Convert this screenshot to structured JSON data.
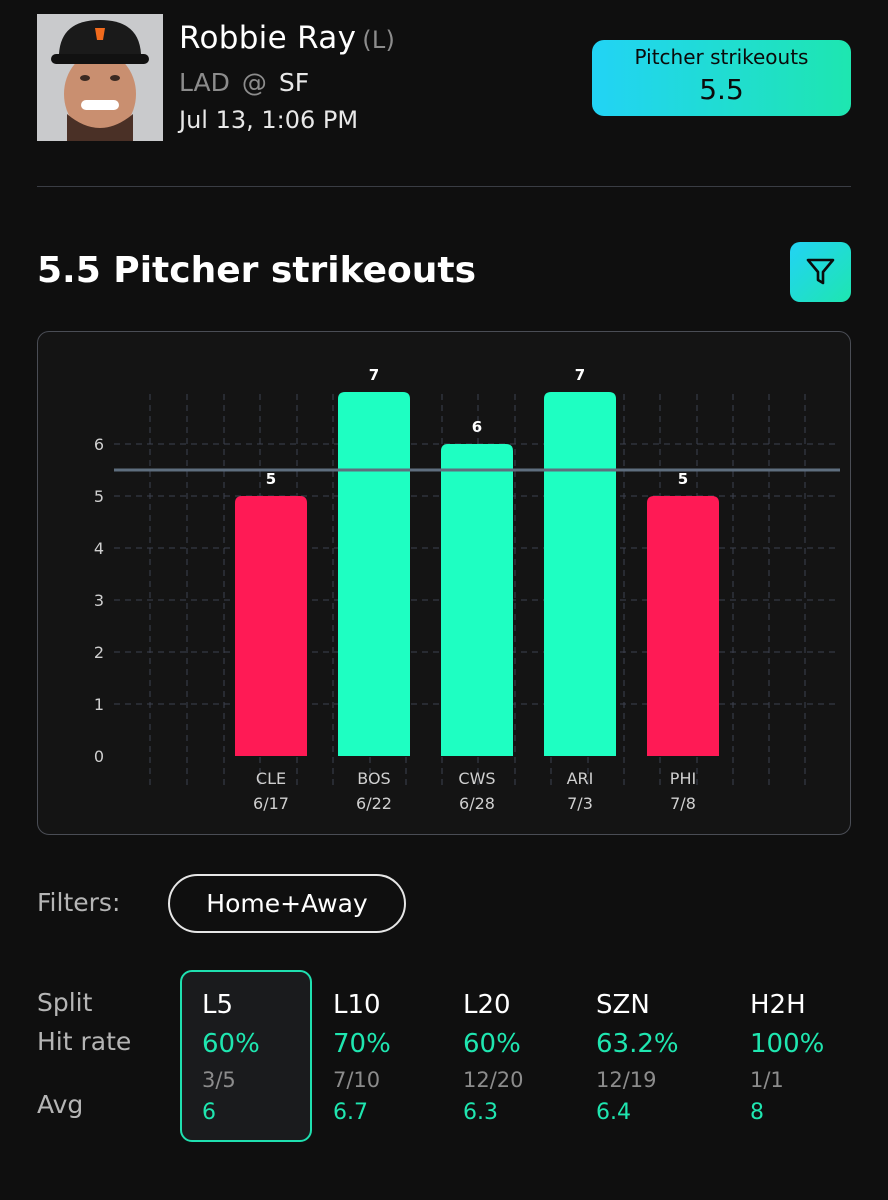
{
  "player": {
    "name": "Robbie Ray",
    "hand": "(L)",
    "away_team": "LAD",
    "at": "@",
    "home_team": "SF",
    "game_time": "Jul 13, 1:06 PM"
  },
  "prop": {
    "label": "Pitcher strikeouts",
    "line": "5.5"
  },
  "section": {
    "title": "5.5 Pitcher strikeouts"
  },
  "chart_data": {
    "type": "bar",
    "categories": [
      "CLE",
      "BOS",
      "CWS",
      "ARI",
      "PHI"
    ],
    "dates": [
      "6/17",
      "6/22",
      "6/28",
      "7/3",
      "7/8"
    ],
    "values": [
      5,
      7,
      6,
      7,
      5
    ],
    "line_value": 5.5,
    "yticks": [
      0,
      1,
      2,
      3,
      4,
      5,
      6
    ],
    "ylim": [
      0,
      7
    ],
    "grid": true,
    "colors": {
      "over": "#1effc2",
      "under": "#ff1a55",
      "line": "#5e6e7e"
    }
  },
  "filters": {
    "label": "Filters:",
    "active": "Home+Away"
  },
  "splits": {
    "labels": {
      "split": "Split",
      "hit_rate": "Hit rate",
      "avg": "Avg"
    },
    "columns": [
      {
        "name": "L5",
        "rate": "60%",
        "frac": "3/5",
        "avg": "6",
        "selected": true
      },
      {
        "name": "L10",
        "rate": "70%",
        "frac": "7/10",
        "avg": "6.7"
      },
      {
        "name": "L20",
        "rate": "60%",
        "frac": "12/20",
        "avg": "6.3"
      },
      {
        "name": "SZN",
        "rate": "63.2%",
        "frac": "12/19",
        "avg": "6.4"
      },
      {
        "name": "H2H",
        "rate": "100%",
        "frac": "1/1",
        "avg": "8"
      }
    ]
  }
}
